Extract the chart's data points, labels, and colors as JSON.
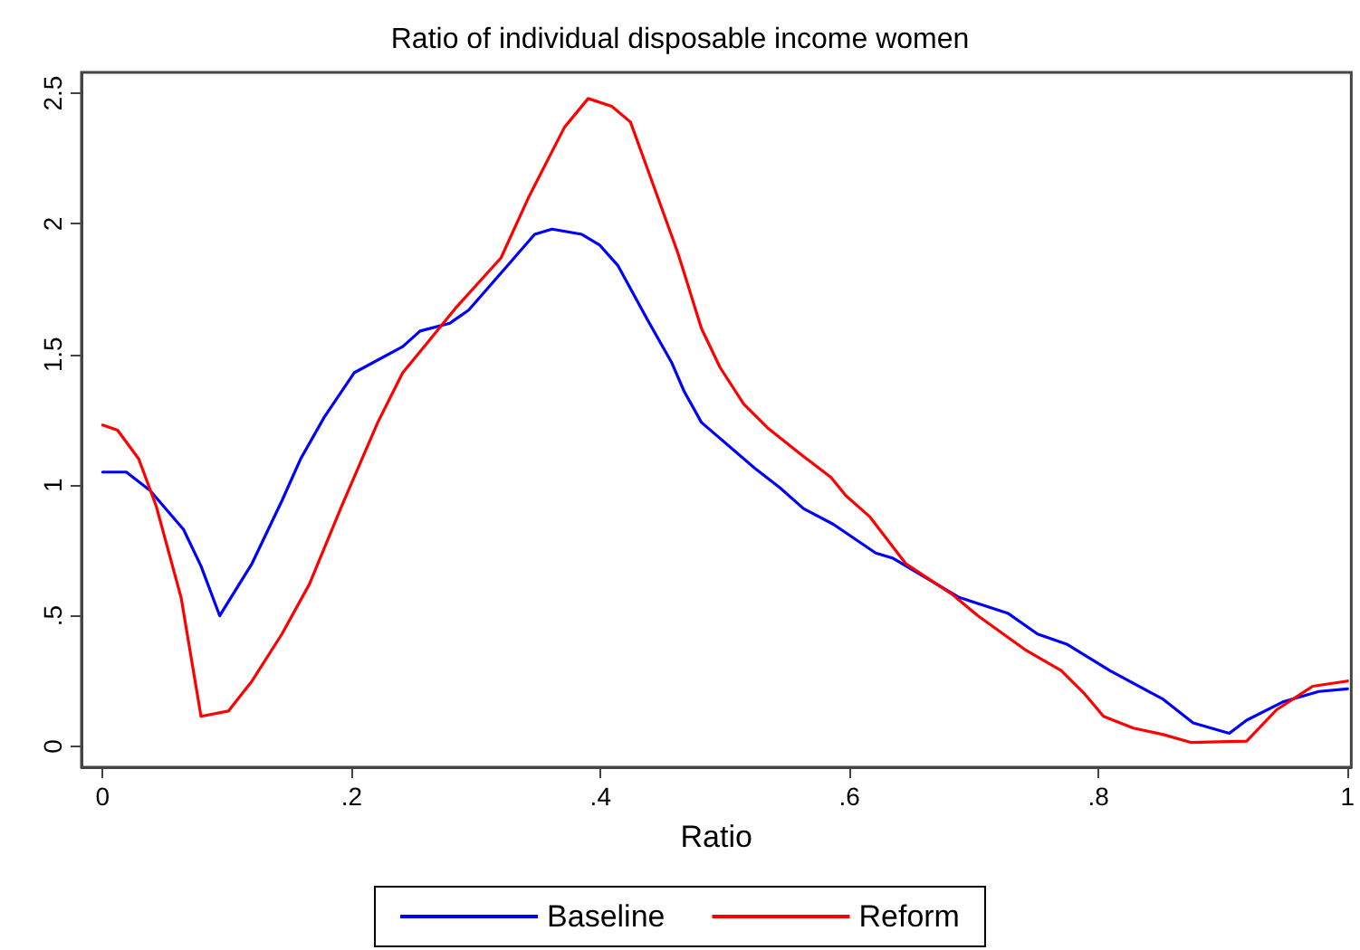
{
  "chart_data": {
    "type": "line",
    "title": "Ratio of individual disposable income women",
    "xlabel": "Ratio",
    "xlim": [
      -0.017,
      1.003
    ],
    "xticks": [
      {
        "value": 0,
        "label": "0"
      },
      {
        "value": 0.2,
        "label": ".2"
      },
      {
        "value": 0.4,
        "label": ".4"
      },
      {
        "value": 0.6,
        "label": ".6"
      },
      {
        "value": 0.8,
        "label": ".8"
      },
      {
        "value": 1,
        "label": "1"
      }
    ],
    "ylim": [
      -0.08,
      2.58
    ],
    "yticks": [
      {
        "value": 0,
        "label": "0"
      },
      {
        "value": 0.5,
        "label": ".5"
      },
      {
        "value": 1,
        "label": "1"
      },
      {
        "value": 1.5,
        "label": "1.5"
      },
      {
        "value": 2,
        "label": "2"
      },
      {
        "value": 2.5,
        "label": "2.5"
      }
    ],
    "grid": false,
    "legend": "bottom",
    "line_style": "solid",
    "series": [
      {
        "name": "Baseline",
        "color": "#0000ff",
        "x": [
          0,
          0.019,
          0.038,
          0.065,
          0.079,
          0.094,
          0.12,
          0.144,
          0.159,
          0.178,
          0.202,
          0.241,
          0.255,
          0.279,
          0.294,
          0.327,
          0.347,
          0.361,
          0.385,
          0.399,
          0.414,
          0.438,
          0.457,
          0.467,
          0.481,
          0.525,
          0.544,
          0.563,
          0.587,
          0.621,
          0.635,
          0.688,
          0.727,
          0.751,
          0.775,
          0.809,
          0.852,
          0.876,
          0.905,
          0.919,
          0.948,
          0.977,
          1.0
        ],
        "values": [
          1.05,
          1.05,
          0.98,
          0.83,
          0.69,
          0.5,
          0.7,
          0.94,
          1.1,
          1.26,
          1.43,
          1.53,
          1.59,
          1.62,
          1.67,
          1.85,
          1.96,
          1.98,
          1.96,
          1.92,
          1.84,
          1.63,
          1.47,
          1.36,
          1.24,
          1.06,
          0.99,
          0.91,
          0.85,
          0.74,
          0.72,
          0.57,
          0.51,
          0.43,
          0.39,
          0.29,
          0.18,
          0.09,
          0.05,
          0.1,
          0.17,
          0.21,
          0.22
        ]
      },
      {
        "name": "Reform",
        "color": "#ff0000",
        "x": [
          0,
          0.012,
          0.029,
          0.043,
          0.063,
          0.079,
          0.101,
          0.12,
          0.144,
          0.166,
          0.192,
          0.221,
          0.241,
          0.26,
          0.284,
          0.32,
          0.342,
          0.371,
          0.39,
          0.409,
          0.424,
          0.443,
          0.462,
          0.481,
          0.496,
          0.515,
          0.534,
          0.563,
          0.585,
          0.597,
          0.616,
          0.645,
          0.683,
          0.703,
          0.741,
          0.77,
          0.789,
          0.804,
          0.828,
          0.852,
          0.874,
          0.919,
          0.943,
          0.972,
          1.0
        ],
        "values": [
          1.23,
          1.21,
          1.1,
          0.92,
          0.57,
          0.115,
          0.135,
          0.25,
          0.43,
          0.62,
          0.92,
          1.24,
          1.43,
          1.54,
          1.68,
          1.87,
          2.1,
          2.37,
          2.48,
          2.45,
          2.39,
          2.14,
          1.89,
          1.6,
          1.45,
          1.31,
          1.22,
          1.11,
          1.03,
          0.96,
          0.88,
          0.7,
          0.58,
          0.5,
          0.37,
          0.29,
          0.2,
          0.115,
          0.07,
          0.045,
          0.015,
          0.02,
          0.14,
          0.23,
          0.25
        ]
      }
    ]
  }
}
